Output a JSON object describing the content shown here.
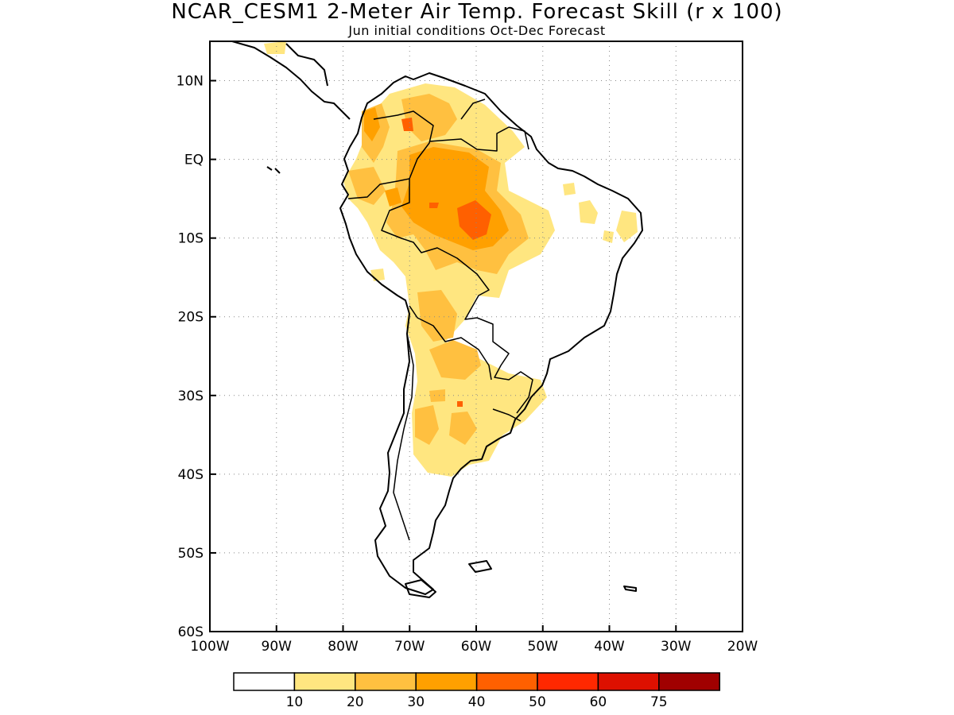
{
  "title": "NCAR_CESM1 2-Meter Air Temp. Forecast Skill (r x 100)",
  "subtitle": "Jun initial conditions  Oct-Dec Forecast",
  "map": {
    "lon_range": [
      -100,
      -20
    ],
    "lat_range": [
      -60,
      15
    ],
    "lon_ticks": [
      "100W",
      "90W",
      "80W",
      "70W",
      "60W",
      "50W",
      "40W",
      "30W",
      "20W"
    ],
    "lat_ticks": [
      "10N",
      "EQ",
      "10S",
      "20S",
      "30S",
      "40S",
      "50S",
      "60S"
    ],
    "grid": "dotted"
  },
  "colorbar": {
    "labels": [
      "10",
      "20",
      "30",
      "40",
      "50",
      "60",
      "75"
    ],
    "colors": [
      "#ffffff",
      "#ffe680",
      "#ffc040",
      "#ffa000",
      "#ff6000",
      "#ff2800",
      "#dd1000",
      "#a00000"
    ]
  }
}
